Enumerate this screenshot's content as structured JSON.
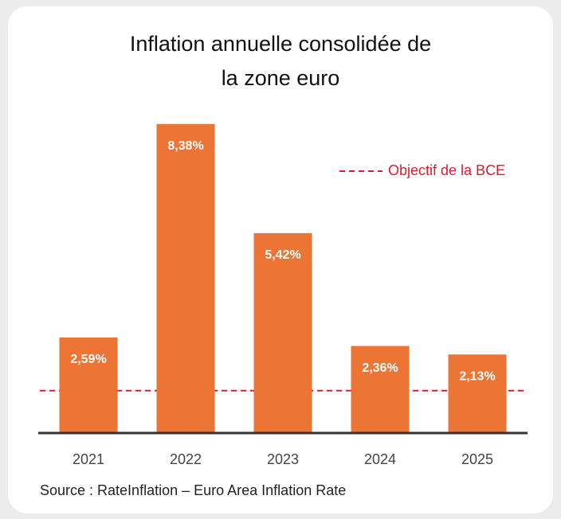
{
  "chart_data": {
    "type": "bar",
    "title": "Inflation annuelle consolidée de la zone euro",
    "categories": [
      "2021",
      "2022",
      "2023",
      "2024",
      "2025"
    ],
    "values": [
      2.59,
      8.38,
      5.42,
      2.36,
      2.13
    ],
    "value_labels": [
      "2,59%",
      "8,38%",
      "5,42%",
      "2,36%",
      "2,13%"
    ],
    "color": "#ec7434",
    "ylim": [
      0,
      9
    ],
    "reference_line": {
      "name": "Objectif de la BCE",
      "value": 1.15,
      "color": "#d6202f"
    },
    "source": "Source : RateInflation – Euro Area Inflation Rate"
  }
}
